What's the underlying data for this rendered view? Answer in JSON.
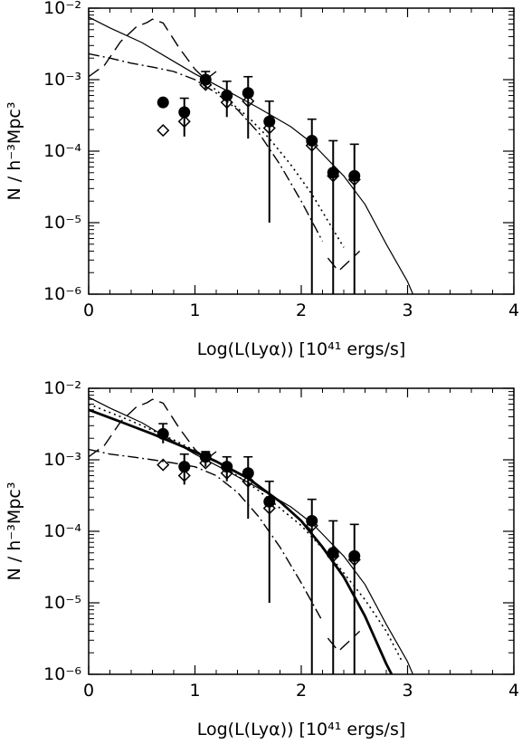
{
  "chart_data": [
    {
      "type": "scatter",
      "title": "",
      "xlabel": "Log(L(Lyα)) [10⁴¹ ergs/s]",
      "ylabel": "N / h⁻³Mpc³",
      "xlim": [
        0,
        4
      ],
      "ylim": [
        1e-06,
        0.01
      ],
      "yscale": "log",
      "x_ticks": [
        "0",
        "1",
        "2",
        "3",
        "4"
      ],
      "y_ticks": [
        "10⁻⁶",
        "10⁻⁵",
        "10⁻⁴",
        "10⁻³",
        "10⁻²"
      ],
      "grid": false,
      "points_filled": [
        {
          "x": 0.7,
          "y": 0.00048
        },
        {
          "x": 0.9,
          "y": 0.00035,
          "err_lo": 0.00016,
          "err_hi": 0.00055
        },
        {
          "x": 1.1,
          "y": 0.001,
          "err_lo": 0.00075,
          "err_hi": 0.0013
        },
        {
          "x": 1.3,
          "y": 0.0006,
          "err_lo": 0.0003,
          "err_hi": 0.00095
        },
        {
          "x": 1.5,
          "y": 0.00065,
          "err_lo": 0.00015,
          "err_hi": 0.0011
        },
        {
          "x": 1.7,
          "y": 0.00026,
          "err_lo": 1e-05,
          "err_hi": 0.0005
        },
        {
          "x": 2.1,
          "y": 0.00014,
          "err_lo": 1e-06,
          "err_hi": 0.00028
        },
        {
          "x": 2.3,
          "y": 5e-05,
          "err_lo": 1e-06,
          "err_hi": 0.00014
        },
        {
          "x": 2.5,
          "y": 4.5e-05,
          "err_lo": 1e-06,
          "err_hi": 0.000125
        }
      ],
      "points_open": [
        {
          "x": 0.7,
          "y": 0.000195
        },
        {
          "x": 0.9,
          "y": 0.00026
        },
        {
          "x": 1.1,
          "y": 0.00085
        },
        {
          "x": 1.3,
          "y": 0.00048
        },
        {
          "x": 1.5,
          "y": 0.0005
        },
        {
          "x": 1.7,
          "y": 0.00021
        },
        {
          "x": 2.1,
          "y": 0.00012
        },
        {
          "x": 2.3,
          "y": 4.5e-05
        },
        {
          "x": 2.5,
          "y": 4e-05
        }
      ],
      "series": [
        {
          "style": "solid",
          "x": [
            0,
            0.2,
            0.5,
            0.8,
            1.0,
            1.3,
            1.6,
            1.9,
            2.1,
            2.4,
            2.6,
            2.8,
            3.0,
            3.05
          ],
          "y": [
            0.0075,
            0.0053,
            0.0033,
            0.0018,
            0.0012,
            0.0007,
            0.0004,
            0.00022,
            0.00013,
            4.5e-05,
            1.8e-05,
            5e-06,
            1.5e-06,
            1e-06
          ]
        },
        {
          "style": "dashed",
          "x": [
            0.0,
            0.15,
            0.3,
            0.45,
            0.55,
            0.6,
            0.7,
            0.85,
            1.0,
            1.1,
            1.2
          ],
          "y": [
            0.0011,
            0.0016,
            0.0034,
            0.0055,
            0.0063,
            0.007,
            0.0062,
            0.0028,
            0.0014,
            0.001,
            0.0013
          ]
        },
        {
          "style": "dashed",
          "x": [
            2.25,
            2.35,
            2.45,
            2.55
          ],
          "y": [
            3.2e-06,
            2.1e-06,
            2.9e-06,
            4e-06
          ]
        },
        {
          "style": "dotted",
          "x": [
            1.1,
            1.3,
            1.5,
            1.7,
            1.9,
            2.1,
            2.3,
            2.4
          ],
          "y": [
            0.00095,
            0.00053,
            0.0003,
            0.00015,
            6.5e-05,
            2.5e-05,
            8e-06,
            4.5e-06
          ]
        },
        {
          "style": "dashdot",
          "x": [
            0.0,
            0.2,
            0.4,
            0.6,
            0.8,
            1.0,
            1.2,
            1.4,
            1.6,
            1.8,
            2.0,
            2.2
          ],
          "y": [
            0.0023,
            0.002,
            0.0017,
            0.0015,
            0.0013,
            0.001,
            0.00065,
            0.00038,
            0.00018,
            6.5e-05,
            2e-05,
            5.5e-06
          ]
        }
      ]
    },
    {
      "type": "scatter",
      "title": "",
      "xlabel": "Log(L(Lyα)) [10⁴¹ ergs/s]",
      "ylabel": "N / h⁻³Mpc³",
      "xlim": [
        0,
        4
      ],
      "ylim": [
        1e-06,
        0.01
      ],
      "yscale": "log",
      "x_ticks": [
        "0",
        "1",
        "2",
        "3",
        "4"
      ],
      "y_ticks": [
        "10⁻⁶",
        "10⁻⁵",
        "10⁻⁴",
        "10⁻³",
        "10⁻²"
      ],
      "grid": false,
      "points_filled": [
        {
          "x": 0.7,
          "y": 0.0023,
          "err_lo": 0.0017,
          "err_hi": 0.0032
        },
        {
          "x": 0.9,
          "y": 0.0008,
          "err_lo": 0.00045,
          "err_hi": 0.0012
        },
        {
          "x": 1.1,
          "y": 0.0011,
          "err_lo": 0.0008,
          "err_hi": 0.0013
        },
        {
          "x": 1.3,
          "y": 0.0008,
          "err_lo": 0.0005,
          "err_hi": 0.0011
        },
        {
          "x": 1.5,
          "y": 0.00065,
          "err_lo": 0.00015,
          "err_hi": 0.0011
        },
        {
          "x": 1.7,
          "y": 0.00026,
          "err_lo": 1e-05,
          "err_hi": 0.0005
        },
        {
          "x": 2.1,
          "y": 0.00014,
          "err_lo": 1e-06,
          "err_hi": 0.00028
        },
        {
          "x": 2.3,
          "y": 5e-05,
          "err_lo": 1e-06,
          "err_hi": 0.00014
        },
        {
          "x": 2.5,
          "y": 4.5e-05,
          "err_lo": 1e-06,
          "err_hi": 0.000125
        }
      ],
      "points_open": [
        {
          "x": 0.7,
          "y": 0.00085
        },
        {
          "x": 0.9,
          "y": 0.0006
        },
        {
          "x": 1.1,
          "y": 0.0009
        },
        {
          "x": 1.3,
          "y": 0.00065
        },
        {
          "x": 1.5,
          "y": 0.0005
        },
        {
          "x": 1.7,
          "y": 0.00021
        },
        {
          "x": 2.1,
          "y": 0.00012
        },
        {
          "x": 2.3,
          "y": 4.5e-05
        },
        {
          "x": 2.5,
          "y": 4e-05
        }
      ],
      "series": [
        {
          "style": "solid",
          "x": [
            0,
            0.2,
            0.5,
            0.8,
            1.0,
            1.3,
            1.6,
            1.9,
            2.1,
            2.4,
            2.6,
            2.8,
            3.0,
            3.05
          ],
          "y": [
            0.0075,
            0.0053,
            0.0033,
            0.0018,
            0.0012,
            0.0007,
            0.0004,
            0.00022,
            0.00013,
            4.5e-05,
            1.8e-05,
            5e-06,
            1.5e-06,
            1e-06
          ]
        },
        {
          "style": "thick",
          "x": [
            0,
            0.3,
            0.6,
            0.9,
            1.2,
            1.5,
            1.8,
            2.0,
            2.2,
            2.4,
            2.6,
            2.7,
            2.8,
            2.85
          ],
          "y": [
            0.005,
            0.0034,
            0.0023,
            0.0015,
            0.00095,
            0.00055,
            0.00026,
            0.00014,
            6e-05,
            2.3e-05,
            6.5e-06,
            3e-06,
            1.4e-06,
            1e-06
          ]
        },
        {
          "style": "dashed",
          "x": [
            0.0,
            0.15,
            0.3,
            0.45,
            0.55,
            0.6,
            0.7,
            0.85,
            1.0,
            1.1,
            1.2
          ],
          "y": [
            0.0011,
            0.0016,
            0.0034,
            0.0055,
            0.0063,
            0.007,
            0.0062,
            0.0028,
            0.0014,
            0.001,
            0.0013
          ]
        },
        {
          "style": "dashed",
          "x": [
            2.25,
            2.35,
            2.45,
            2.55
          ],
          "y": [
            3.2e-06,
            2.1e-06,
            2.9e-06,
            4e-06
          ]
        },
        {
          "style": "dotted",
          "x": [
            0,
            0.4,
            0.8,
            1.2,
            1.6,
            2.0,
            2.3,
            2.6,
            2.8,
            2.95
          ],
          "y": [
            0.006,
            0.0035,
            0.0019,
            0.00095,
            0.00037,
            0.00012,
            4e-05,
            1.1e-05,
            4e-06,
            1.5e-06
          ]
        },
        {
          "style": "dashdot",
          "x": [
            0.0,
            0.2,
            0.4,
            0.6,
            0.8,
            1.0,
            1.2,
            1.4,
            1.6,
            1.8,
            2.0,
            2.2
          ],
          "y": [
            0.0014,
            0.0012,
            0.0011,
            0.001,
            0.0009,
            0.0008,
            0.0006,
            0.00035,
            0.00016,
            6e-05,
            1.9e-05,
            5.5e-06
          ]
        }
      ]
    }
  ]
}
